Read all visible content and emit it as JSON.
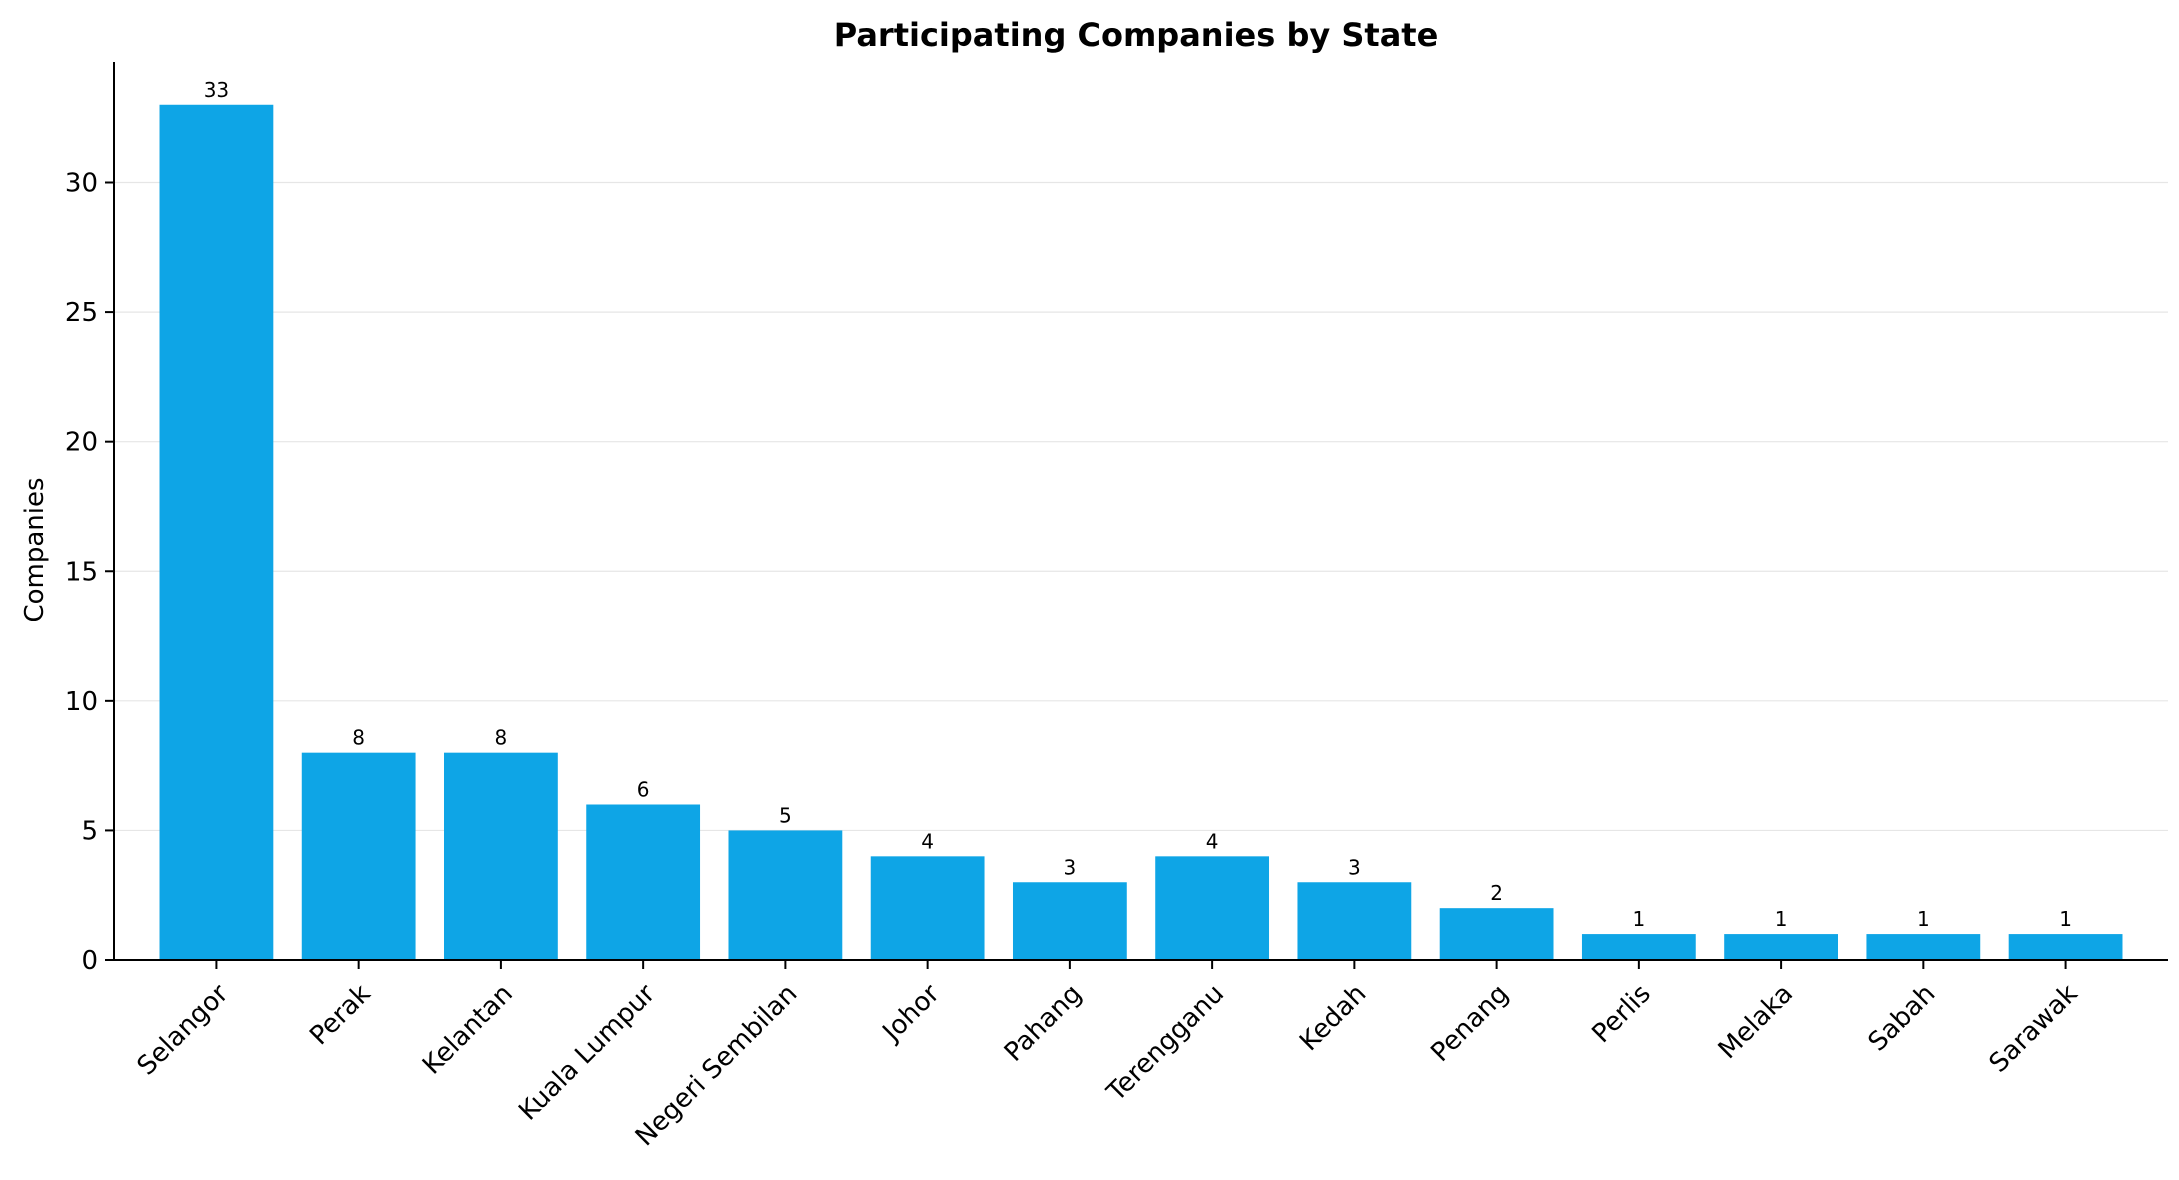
{
  "chart_data": {
    "type": "bar",
    "title": "Participating Companies by State",
    "xlabel": "",
    "ylabel": "Companies",
    "categories": [
      "Selangor",
      "Perak",
      "Kelantan",
      "Kuala Lumpur",
      "Negeri Sembilan",
      "Johor",
      "Pahang",
      "Terengganu",
      "Kedah",
      "Penang",
      "Perlis",
      "Melaka",
      "Sabah",
      "Sarawak"
    ],
    "values": [
      33,
      8,
      8,
      6,
      5,
      4,
      3,
      4,
      3,
      2,
      1,
      1,
      1,
      1
    ],
    "yticks": [
      0,
      5,
      10,
      15,
      20,
      25,
      30
    ],
    "ylim": [
      0,
      34.65
    ],
    "grid": "horizontal",
    "bar_color": "#0ea5e6",
    "show_data_labels": true
  }
}
